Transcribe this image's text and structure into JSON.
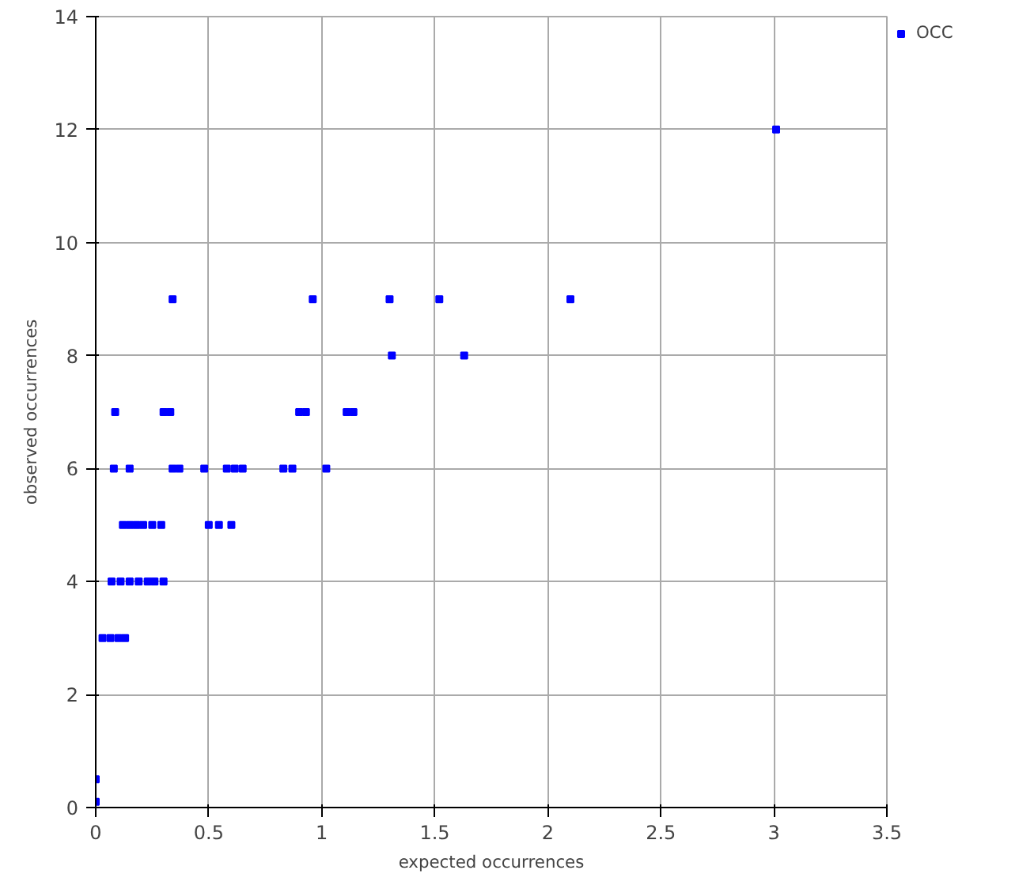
{
  "chart_data": {
    "type": "scatter",
    "xlabel": "expected occurrences",
    "ylabel": "observed occurrences",
    "xlim": [
      0,
      3.5
    ],
    "xticks": [
      0,
      0.5,
      1,
      1.5,
      2,
      2.5,
      3,
      3.5
    ],
    "ylim": [
      0,
      14
    ],
    "yticks": [
      0,
      2,
      4,
      6,
      8,
      10,
      12,
      14
    ],
    "grid": true,
    "legend": "top right",
    "marker": "square",
    "series": [
      {
        "name": "OCC",
        "color": "#0000ff",
        "x": [
          0,
          0,
          0.03,
          0.065,
          0.1,
          0.13,
          0.07,
          0.11,
          0.15,
          0.19,
          0.23,
          0.26,
          0.3,
          0.12,
          0.15,
          0.18,
          0.21,
          0.25,
          0.29,
          0.5,
          0.545,
          0.6,
          0.08,
          0.15,
          0.34,
          0.37,
          0.48,
          0.58,
          0.615,
          0.65,
          0.83,
          0.87,
          1.02,
          0.086,
          0.3,
          0.33,
          0.9,
          0.93,
          1.11,
          1.14,
          1.31,
          1.63,
          0.34,
          0.96,
          1.3,
          1.52,
          2.1,
          3.01
        ],
        "values": [
          0.1,
          0.5,
          3,
          3,
          3,
          3,
          4,
          4,
          4,
          4,
          4,
          4,
          4,
          5,
          5,
          5,
          5,
          5,
          5,
          5,
          5,
          5,
          6,
          6,
          6,
          6,
          6,
          6,
          6,
          6,
          6,
          6,
          6,
          7,
          7,
          7,
          7,
          7,
          7,
          7,
          8,
          8,
          9,
          9,
          9,
          9,
          9,
          12
        ]
      }
    ]
  }
}
